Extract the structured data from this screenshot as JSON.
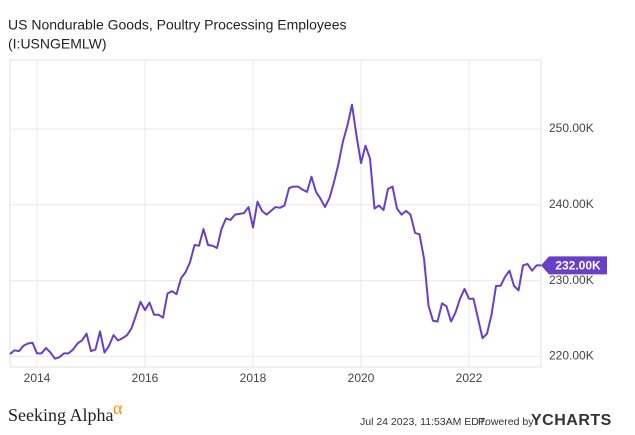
{
  "chart_data": {
    "type": "line",
    "title": "US Nondurable Goods, Poultry Processing Employees",
    "subtitle": "(I:USNGEMLW)",
    "x": [
      2013.5,
      2013.583,
      2013.667,
      2013.75,
      2013.833,
      2013.917,
      2014,
      2014.083,
      2014.167,
      2014.25,
      2014.333,
      2014.417,
      2014.5,
      2014.583,
      2014.667,
      2014.75,
      2014.833,
      2014.917,
      2015,
      2015.083,
      2015.167,
      2015.25,
      2015.333,
      2015.417,
      2015.5,
      2015.583,
      2015.667,
      2015.75,
      2015.833,
      2015.917,
      2016,
      2016.083,
      2016.167,
      2016.25,
      2016.333,
      2016.417,
      2016.5,
      2016.583,
      2016.667,
      2016.75,
      2016.833,
      2016.917,
      2017,
      2017.083,
      2017.167,
      2017.25,
      2017.333,
      2017.417,
      2017.5,
      2017.583,
      2017.667,
      2017.75,
      2017.833,
      2017.917,
      2018,
      2018.083,
      2018.167,
      2018.25,
      2018.333,
      2018.417,
      2018.5,
      2018.583,
      2018.667,
      2018.75,
      2018.833,
      2018.917,
      2019,
      2019.083,
      2019.167,
      2019.25,
      2019.333,
      2019.417,
      2019.5,
      2019.583,
      2019.667,
      2019.75,
      2019.833,
      2019.917,
      2020,
      2020.083,
      2020.167,
      2020.25,
      2020.333,
      2020.417,
      2020.5,
      2020.583,
      2020.667,
      2020.75,
      2020.833,
      2020.917,
      2021,
      2021.083,
      2021.167,
      2021.25,
      2021.333,
      2021.417,
      2021.5,
      2021.583,
      2021.667,
      2021.75,
      2021.833,
      2021.917,
      2022,
      2022.083,
      2022.167,
      2022.25,
      2022.333,
      2022.417,
      2022.5,
      2022.583,
      2022.667,
      2022.75,
      2022.833,
      2022.917,
      2023,
      2023.083,
      2023.167,
      2023.25,
      2023.333
    ],
    "series": [
      {
        "color": "#6a3fc8",
        "axis": "y2",
        "values": [
          220300,
          220800,
          220700,
          221400,
          221700,
          221800,
          220400,
          220400,
          221100,
          220500,
          219700,
          219900,
          220400,
          220400,
          220900,
          221700,
          222100,
          223000,
          220700,
          220900,
          223300,
          220500,
          221400,
          222800,
          222100,
          222400,
          222800,
          223700,
          225400,
          227200,
          226100,
          227100,
          225500,
          225500,
          225100,
          228300,
          228600,
          228200,
          230300,
          231100,
          232400,
          234700,
          234600,
          236800,
          234700,
          234600,
          234300,
          236800,
          238200,
          238000,
          238700,
          238800,
          238900,
          239700,
          237000,
          240400,
          239200,
          238700,
          239200,
          239700,
          239600,
          239900,
          242200,
          242400,
          242400,
          242000,
          241700,
          243700,
          241700,
          240800,
          239700,
          240900,
          243000,
          245400,
          248400,
          250500,
          253200,
          249100,
          245500,
          247800,
          246100,
          239500,
          239900,
          239300,
          242100,
          242400,
          239500,
          238700,
          239200,
          238700,
          236300,
          236100,
          232900,
          226700,
          224700,
          224600,
          227000,
          226600,
          224600,
          225800,
          227600,
          228900,
          227600,
          227600,
          225000,
          222400,
          223000,
          225500,
          229300,
          229300,
          230500,
          231300,
          229300,
          228700,
          232000,
          232200,
          231300,
          232000,
          232000
        ],
        "value_labels": [
          null,
          null,
          null,
          null,
          null,
          null,
          null,
          null,
          null,
          null,
          null,
          null,
          null,
          null,
          null,
          null,
          null,
          null,
          null,
          null,
          null,
          null,
          null,
          null,
          null,
          null,
          null,
          null,
          null,
          null,
          null,
          null,
          null,
          null,
          null,
          null,
          null,
          null,
          null,
          null,
          null,
          null,
          null,
          null,
          null,
          null,
          null,
          null,
          null,
          null,
          null,
          null,
          null,
          null,
          null,
          null,
          null,
          null,
          null,
          null,
          null,
          null,
          null,
          null,
          null,
          null,
          null,
          null,
          null,
          null,
          null,
          null,
          null,
          null,
          null,
          null,
          null,
          null,
          null,
          null,
          null,
          null,
          null,
          null,
          null,
          null,
          null,
          null,
          null,
          null,
          null,
          null,
          null,
          null,
          null,
          null,
          null,
          null,
          null,
          null,
          null,
          null,
          null,
          null,
          null,
          null,
          null,
          null,
          null,
          null,
          null,
          null,
          null,
          null,
          null,
          null,
          null,
          null,
          "232.00K"
        ]
      }
    ],
    "xlim": [
      2013.5,
      2023.333
    ],
    "xticks": [
      2014,
      2016,
      2018,
      2020,
      2022
    ],
    "y2lim": [
      218600,
      259100
    ],
    "y2ticks": [
      {
        "value": 220000,
        "label": "220.00K"
      },
      {
        "value": 230000,
        "label": "230.00K"
      },
      {
        "value": 240000,
        "label": "240.00K"
      },
      {
        "value": 250000,
        "label": "250.00K"
      }
    ],
    "grid": true,
    "footer": {
      "brand": "Seeking Alpha",
      "brand_mark": "α",
      "timestamp": "Jul 24 2023, 11:53AM EDT.",
      "powered_by": "Powered by",
      "provider": "YCHARTS"
    }
  }
}
